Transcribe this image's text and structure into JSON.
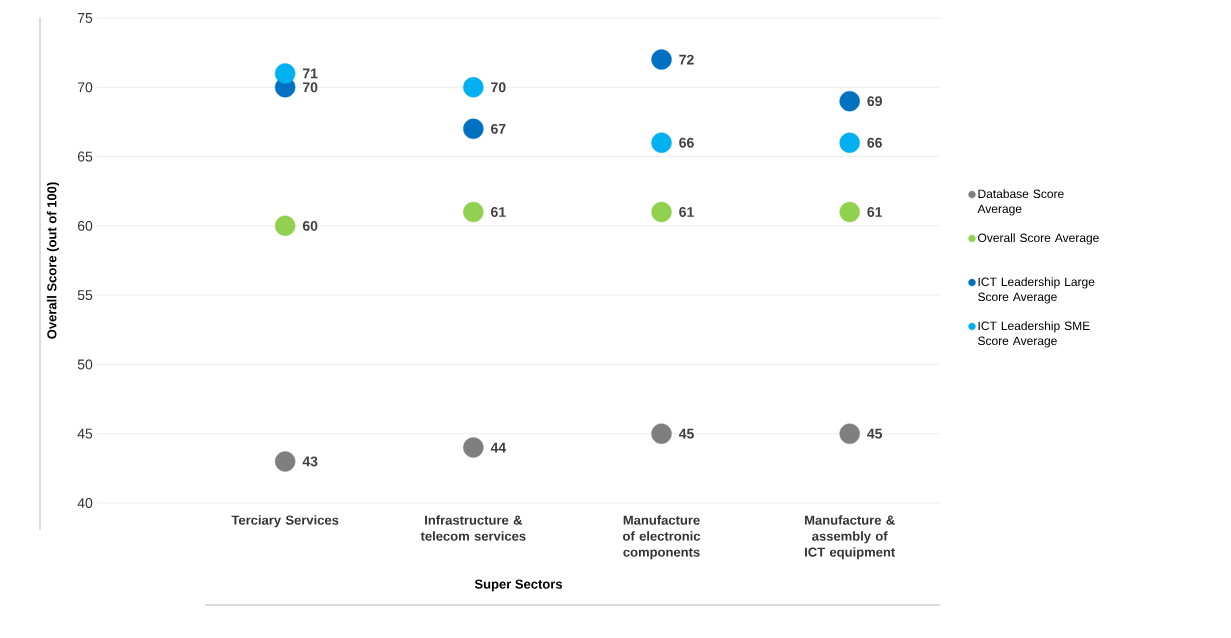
{
  "chart_data": {
    "type": "scatter",
    "xlabel": "Super Sectors",
    "ylabel": "Overall Score (out of 100)",
    "categories": [
      "Terciary Services",
      "Infrastructure & telecom services",
      "Manufacture of electronic components",
      "Manufacture & assembly of ICT equipment"
    ],
    "series": [
      {
        "name": "Database Score Average",
        "color": "#7f7f7f",
        "values": [
          43,
          44,
          45,
          45
        ]
      },
      {
        "name": "Overall Score Average",
        "color": "#92d050",
        "values": [
          60,
          61,
          61,
          61
        ]
      },
      {
        "name": "ICT Leadership Large Score Average",
        "color": "#0070c0",
        "values": [
          70,
          67,
          72,
          69
        ]
      },
      {
        "name": "ICT Leadership SME Score Average",
        "color": "#00b0f0",
        "values": [
          71,
          70,
          66,
          66
        ]
      }
    ],
    "ylim": [
      40,
      75
    ],
    "yticks": [
      40,
      45,
      50,
      55,
      60,
      65,
      70,
      75
    ],
    "grid": "y",
    "legend": "right",
    "marker": "circle",
    "data_labels": true
  }
}
